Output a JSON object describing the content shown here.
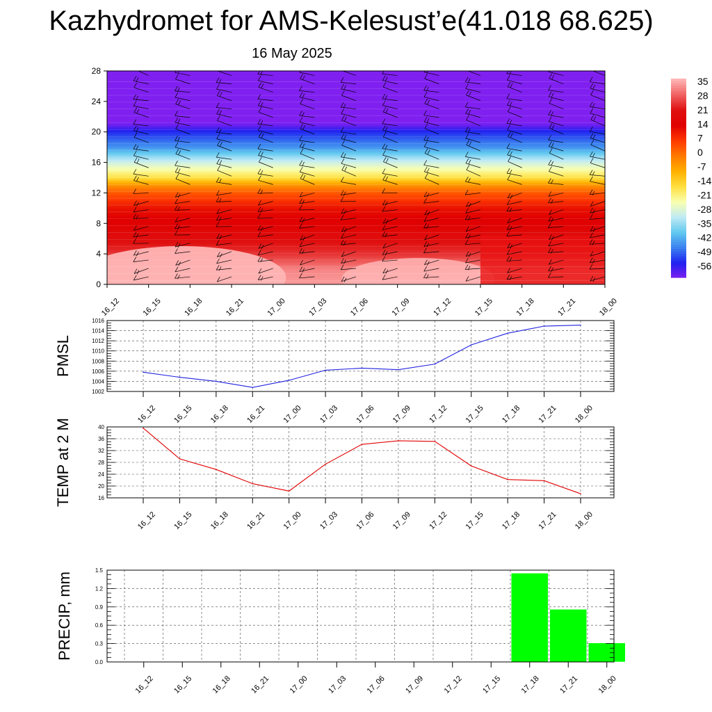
{
  "page": {
    "title": "Kazhydromet for AMS-Kelesust’e(41.018 68.625)",
    "subtitle": "16 May 2025"
  },
  "chart_data": [
    {
      "type": "heatmap",
      "title": "",
      "x_categories": [
        "16_12",
        "16_15",
        "16_18",
        "16_21",
        "17_00",
        "17_03",
        "17_06",
        "17_09",
        "17_12",
        "17_15",
        "17_18",
        "17_21",
        "18_00"
      ],
      "y_ticks": [
        0,
        4,
        8,
        12,
        16,
        20,
        24,
        28
      ],
      "ylim": [
        0,
        28
      ],
      "colorbar_labels": [
        "35",
        "28",
        "21",
        "14",
        "7",
        "0",
        "-7",
        "-14",
        "-21",
        "-28",
        "-35",
        "-42",
        "-49",
        "-56"
      ],
      "palette": [
        "#ffb4b4",
        "#f06060",
        "#e01010",
        "#e00000",
        "#ff3a00",
        "#ff7a00",
        "#ffb000",
        "#ffe040",
        "#f8ffb0",
        "#bfeaf5",
        "#60c8f0",
        "#3a80f0",
        "#2020f0",
        "#8020f0"
      ],
      "profile_levels": [
        0,
        2,
        4,
        6,
        8,
        10,
        12,
        13,
        14,
        16,
        18,
        20,
        21,
        22,
        24,
        28
      ],
      "profile_temps": [
        33,
        31,
        24,
        20,
        15,
        12,
        4,
        -3,
        -14,
        -26,
        -40,
        -48,
        -55,
        -57,
        -58,
        -58
      ],
      "wind_barbs": true,
      "grid": false
    },
    {
      "type": "line",
      "ylabel": "PMSL",
      "x": [
        "16_12",
        "16_15",
        "16_18",
        "16_21",
        "17_00",
        "17_03",
        "17_06",
        "17_09",
        "17_12",
        "17_15",
        "17_18",
        "17_21",
        "18_00"
      ],
      "values": [
        1005.8,
        1004.8,
        1004.0,
        1002.8,
        1004.2,
        1006.2,
        1006.6,
        1006.3,
        1007.4,
        1011.2,
        1013.5,
        1014.9,
        1015.1
      ],
      "ylim": [
        1002,
        1016
      ],
      "yticks": [
        1002,
        1004,
        1006,
        1008,
        1010,
        1012,
        1014,
        1016
      ],
      "color": "#2020e0",
      "grid": true
    },
    {
      "type": "line",
      "ylabel": "TEMP at 2 M",
      "x": [
        "16_12",
        "16_15",
        "16_18",
        "16_21",
        "17_00",
        "17_03",
        "17_06",
        "17_09",
        "17_12",
        "17_15",
        "17_18",
        "17_21",
        "18_00"
      ],
      "values": [
        39.6,
        29.2,
        25.6,
        20.8,
        18.3,
        27.4,
        34.1,
        35.3,
        35.1,
        26.8,
        22.2,
        21.8,
        17.4
      ],
      "ylim": [
        16,
        40
      ],
      "yticks": [
        16,
        20,
        24,
        28,
        32,
        36,
        40
      ],
      "color": "#e00000",
      "grid": true
    },
    {
      "type": "bar",
      "ylabel": "PRECIP, mm",
      "categories": [
        "16_12",
        "16_15",
        "16_18",
        "16_21",
        "17_00",
        "17_03",
        "17_06",
        "17_09",
        "17_12",
        "17_15",
        "17_18",
        "17_21",
        "18_00"
      ],
      "values": [
        0,
        0,
        0,
        0,
        0,
        0,
        0,
        0,
        0,
        0,
        1.45,
        0.86,
        0.31
      ],
      "ylim": [
        0,
        1.5
      ],
      "yticks": [
        "0.0",
        "0.3",
        "0.6",
        "0.9",
        "1.2",
        "1.5"
      ],
      "color": "#00ff00",
      "grid": true
    }
  ]
}
